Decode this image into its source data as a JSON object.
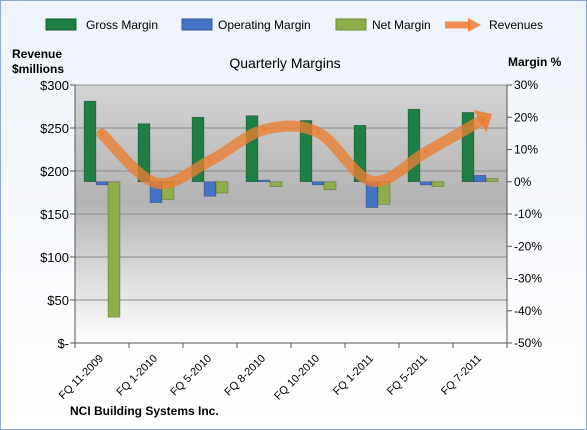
{
  "chart_data": {
    "type": "bar",
    "title": "Quarterly Margins",
    "company": "NCI Building Systems Inc.",
    "left_axis_title": [
      "Revenue",
      "$millions"
    ],
    "right_axis_title": "Margin %",
    "left_ticks": [
      "$-",
      "$50",
      "$100",
      "$150",
      "$200",
      "$250",
      "$300"
    ],
    "right_ticks": [
      "-50%",
      "-40%",
      "-30%",
      "-20%",
      "-10%",
      "0%",
      "10%",
      "20%",
      "30%"
    ],
    "left_ylim": [
      0,
      300
    ],
    "right_ylim": [
      -50,
      30
    ],
    "grid": "horizontal",
    "legend_position": "top",
    "categories": [
      "FQ 11-2009",
      "FQ 1-2010",
      "FQ 5-2010",
      "FQ 8-2010",
      "FQ 10-2010",
      "FQ 1-2011",
      "FQ 5-2011",
      "FQ 7-2011"
    ],
    "series": [
      {
        "name": "Gross Margin",
        "axis": "right",
        "type": "bar",
        "color": "#1E7F45",
        "values": [
          25,
          18,
          20,
          20.5,
          19,
          17.5,
          22.5,
          21.5
        ]
      },
      {
        "name": "Operating Margin",
        "axis": "right",
        "type": "bar",
        "color": "#4472C4",
        "values": [
          -1,
          -6.5,
          -4.5,
          0.5,
          -1,
          -8,
          -1,
          2
        ]
      },
      {
        "name": "Net Margin",
        "axis": "right",
        "type": "bar",
        "color": "#8FAE4A",
        "values": [
          -42,
          -5.5,
          -3.5,
          -1.5,
          -2.5,
          -7,
          -1.5,
          1
        ]
      },
      {
        "name": "Revenues",
        "axis": "left",
        "type": "line",
        "color": "#ED7D31",
        "values": [
          243,
          186,
          212,
          248,
          245,
          188,
          222,
          258
        ]
      }
    ]
  }
}
